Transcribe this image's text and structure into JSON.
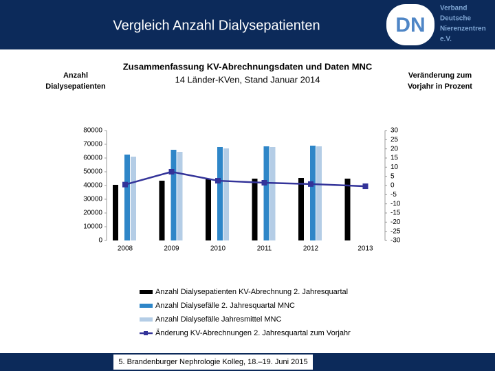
{
  "page": {
    "title": "Vergleich Anzahl Dialysepatienten",
    "logo_mark": "DN",
    "logo_lines": [
      "Verband",
      "Deutsche",
      "Nierenzentren",
      "e.V."
    ],
    "footer": "5. Brandenburger Nephrologie Kolleg, 18.–19. Juni 2015"
  },
  "chart_data": {
    "type": "bar",
    "title": "Zusammenfassung KV-Abrechnungsdaten und Daten MNC",
    "subtitle": "14 Länder-KVen, Stand Januar 2014",
    "y_label": "Anzahl Dialysepatienten",
    "y2_label": "Veränderung zum Vorjahr in Prozent",
    "categories": [
      "2008",
      "2009",
      "2010",
      "2011",
      "2012",
      "2013"
    ],
    "series": [
      {
        "name": "Anzahl Dialysepatienten KV-Abrechnung 2. Jahresquartal",
        "color": "#000000",
        "values": [
          40500,
          43500,
          44500,
          45000,
          45500,
          45000
        ]
      },
      {
        "name": "Anzahl Dialysefälle 2. Jahresquartal MNC",
        "color": "#2e86c8",
        "values": [
          62500,
          66000,
          68000,
          68500,
          69000,
          null
        ]
      },
      {
        "name": "Anzahl Dialysefälle Jahresmittel MNC",
        "color": "#b4cde6",
        "values": [
          61000,
          64500,
          67000,
          68000,
          68500,
          null
        ]
      },
      {
        "name": "Änderung KV-Abrechnungen 2. Jahresquartal zum Vorjahr",
        "color": "#333399",
        "type": "line",
        "axis": "y2",
        "values": [
          0.5,
          7.5,
          2.6,
          1.5,
          0.8,
          -0.4
        ]
      }
    ],
    "ylim": [
      0,
      80000
    ],
    "yticks": [
      0,
      10000,
      20000,
      30000,
      40000,
      50000,
      60000,
      70000,
      80000
    ],
    "y2lim": [
      -30,
      30
    ],
    "y2ticks": [
      -30,
      -25,
      -20,
      -15,
      -10,
      -5,
      0,
      5,
      10,
      15,
      20,
      25,
      30
    ]
  }
}
